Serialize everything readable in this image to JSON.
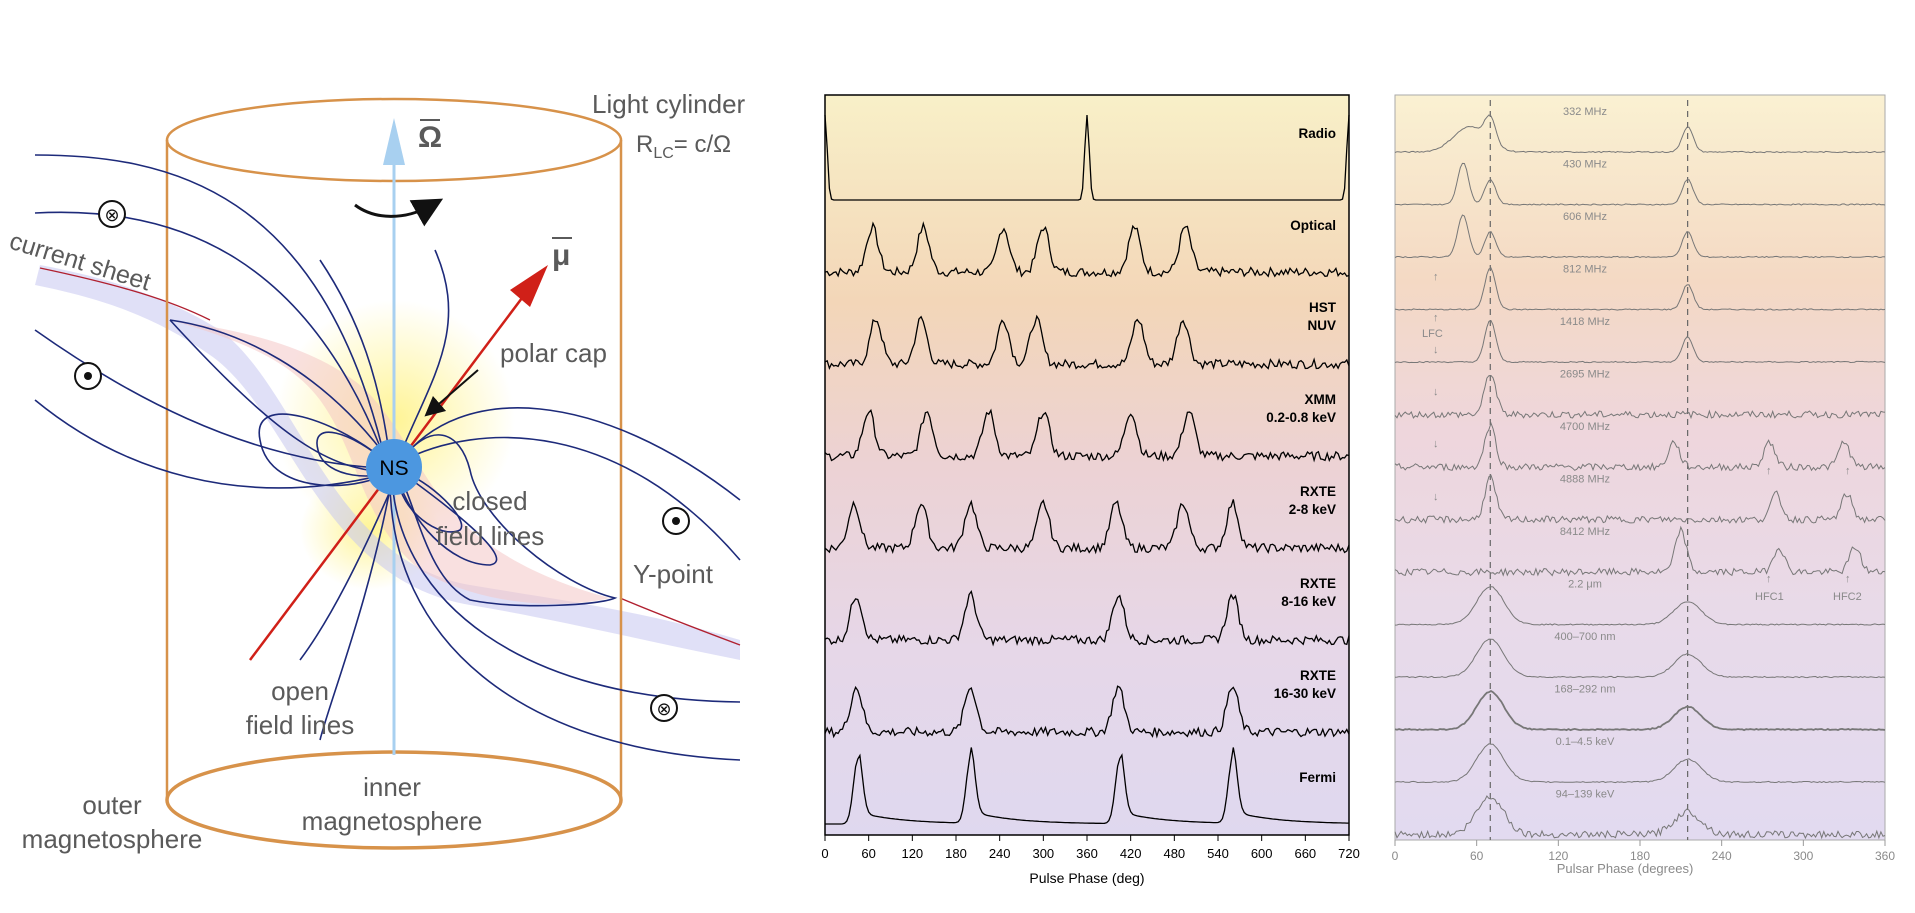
{
  "diagram": {
    "light_cylinder_title": "Light cylinder",
    "rlc_symbol": "R",
    "rlc_subscript": "LC",
    "rlc_equation": "= c/Ω",
    "omega_symbol": "Ω",
    "mu_symbol": "μ",
    "current_sheet": "current sheet",
    "polar_cap": "polar cap",
    "ns_label": "NS",
    "closed_line1": "closed",
    "closed_line2": "field lines",
    "y_point": "Y-point",
    "open_line1": "open",
    "open_line2": "field lines",
    "outer_line1": "outer",
    "outer_line2": "magnetosphere",
    "inner_line1": "inner",
    "inner_line2": "magnetosphere",
    "current_out_symbol": "⊙",
    "current_in_symbol": "⊗",
    "colors": {
      "cylinder": "#d7924a",
      "field": "#1d2a7a",
      "ns": "#4c97e0",
      "mu": "#d02018",
      "omega": "#9cc8ee"
    }
  },
  "chart_data": [
    {
      "type": "line",
      "title": "",
      "xlabel": "Pulse Phase (deg)",
      "ylabel": "",
      "xlim": [
        0,
        720
      ],
      "xticks": [
        "0",
        "60",
        "120",
        "180",
        "240",
        "300",
        "360",
        "420",
        "480",
        "540",
        "600",
        "660",
        "720"
      ],
      "series": [
        {
          "name": "Radio",
          "lines": [
            "Radio"
          ],
          "peaks": [
            0,
            360,
            720
          ]
        },
        {
          "name": "Optical",
          "lines": [
            "Optical"
          ],
          "peaks": [
            65,
            135,
            245,
            300,
            425,
            495
          ]
        },
        {
          "name": "HST NUV",
          "lines": [
            "HST",
            "NUV"
          ],
          "peaks": [
            70,
            132,
            245,
            290,
            430,
            492
          ]
        },
        {
          "name": "XMM 0.2-0.8 keV",
          "lines": [
            "XMM",
            "0.2-0.8 keV"
          ],
          "peaks": [
            60,
            140,
            225,
            300,
            420,
            500
          ]
        },
        {
          "name": "RXTE 2-8 keV",
          "lines": [
            "RXTE",
            "2-8 keV"
          ],
          "peaks": [
            40,
            132,
            200,
            300,
            400,
            492,
            560
          ]
        },
        {
          "name": "RXTE 8-16 keV",
          "lines": [
            "RXTE",
            "8-16 keV"
          ],
          "peaks": [
            43,
            200,
            403,
            560
          ]
        },
        {
          "name": "RXTE 16-30 keV",
          "lines": [
            "RXTE",
            "16-30 keV"
          ],
          "peaks": [
            43,
            200,
            403,
            560
          ]
        },
        {
          "name": "Fermi",
          "lines": [
            "Fermi"
          ],
          "peaks": [
            45,
            200,
            405,
            560
          ]
        }
      ]
    },
    {
      "type": "line",
      "title": "",
      "xlabel": "Pulsar Phase (degrees)",
      "ylabel": "",
      "xlim": [
        0,
        360
      ],
      "xticks": [
        "0",
        "60",
        "120",
        "180",
        "240",
        "300",
        "360"
      ],
      "reference_phases": [
        70,
        215
      ],
      "series": [
        {
          "name": "332 MHz",
          "peaks": [
            55,
            70,
            215
          ]
        },
        {
          "name": "430 MHz",
          "peaks": [
            50,
            70,
            215
          ]
        },
        {
          "name": "606 MHz",
          "peaks": [
            50,
            70,
            215
          ]
        },
        {
          "name": "812 MHz",
          "peaks": [
            70,
            215
          ]
        },
        {
          "name": "1418 MHz",
          "peaks": [
            70,
            215
          ]
        },
        {
          "name": "2695 MHz",
          "peaks": [
            70
          ]
        },
        {
          "name": "4700 MHz",
          "peaks": [
            70,
            205,
            275,
            330
          ]
        },
        {
          "name": "4888 MHz",
          "peaks": [
            70,
            280,
            332
          ]
        },
        {
          "name": "8412 MHz",
          "peaks": [
            210,
            282,
            338
          ]
        },
        {
          "name": "2.2 μm",
          "peaks": [
            70,
            215
          ]
        },
        {
          "name": "400–700 nm",
          "peaks": [
            70,
            215
          ]
        },
        {
          "name": "168–292 nm",
          "peaks": [
            70,
            215
          ]
        },
        {
          "name": "0.1–4.5 keV",
          "peaks": [
            70,
            215
          ]
        },
        {
          "name": "94–139 keV",
          "peaks": [
            70,
            215
          ]
        }
      ],
      "annotations": {
        "lfc": "LFC",
        "hfc1": "HFC1",
        "hfc2": "HFC2",
        "up_arrow": "↑",
        "down_arrow": "↓"
      }
    }
  ]
}
